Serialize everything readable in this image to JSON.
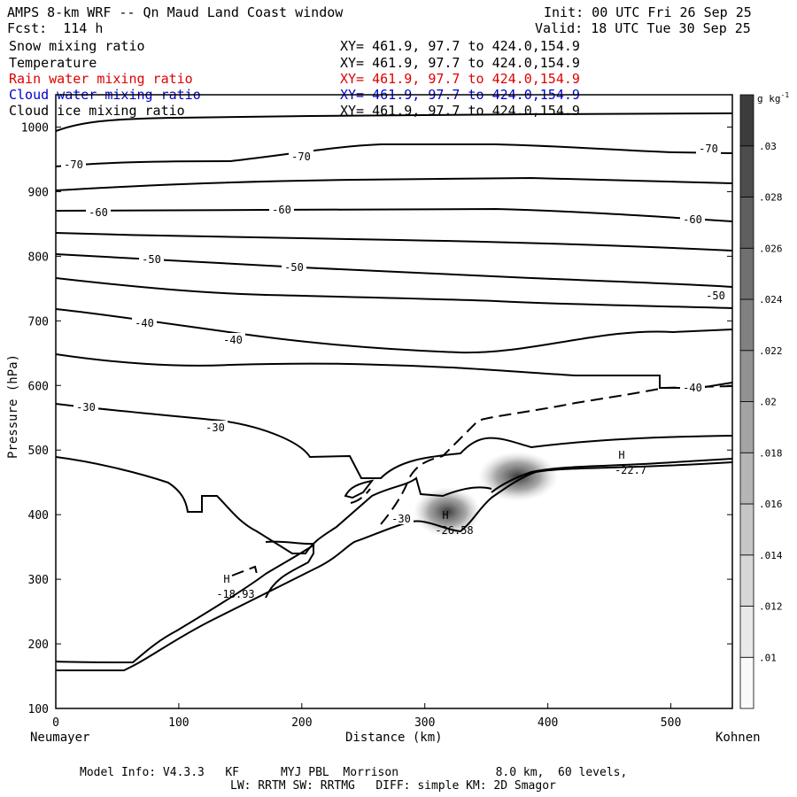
{
  "header": {
    "title": "AMPS 8-km WRF -- Qn Maud Land Coast window",
    "fcst": "Fcst:  114 h",
    "init": "Init: 00 UTC Fri 26 Sep 25",
    "valid": "Valid: 18 UTC Tue 30 Sep 25"
  },
  "fields": [
    {
      "name": "Snow mixing ratio",
      "xy": "XY= 461.9, 97.7 to 424.0,154.9",
      "color": "#000000"
    },
    {
      "name": "Temperature",
      "xy": "XY= 461.9, 97.7 to 424.0,154.9",
      "color": "#000000"
    },
    {
      "name": "Rain water mixing ratio",
      "xy": "XY= 461.9, 97.7 to 424.0,154.9",
      "color": "#e00000"
    },
    {
      "name": "Cloud water mixing ratio",
      "xy": "XY= 461.9, 97.7 to 424.0,154.9",
      "color": "#0000cc"
    },
    {
      "name": "Cloud ice mixing ratio",
      "xy": "XY= 461.9, 97.7 to 424.0,154.9",
      "color": "#000000"
    }
  ],
  "chart_data": {
    "type": "cross-section contour",
    "xlabel": "Distance (km)",
    "ylabel": "Pressure (hPa)",
    "xlim": [
      0,
      550
    ],
    "ylim": [
      1050,
      100
    ],
    "x_ticks": [
      "0",
      "100",
      "200",
      "300",
      "400",
      "500"
    ],
    "y_ticks": [
      "100",
      "200",
      "300",
      "400",
      "500",
      "600",
      "700",
      "800",
      "900",
      "1000"
    ],
    "left_label": "Neumayer",
    "right_label": "Kohnen",
    "contour_labels": [
      "-70",
      "-70",
      "-70",
      "-60",
      "-60",
      "-60",
      "-50",
      "-50",
      "-50",
      "-40",
      "-40",
      "-40",
      "-30",
      "-30",
      "-30"
    ],
    "extrema": [
      {
        "type": "H",
        "value": "-18.93"
      },
      {
        "type": "H",
        "value": "-26.58"
      },
      {
        "type": "H",
        "value": "-22.7"
      }
    ],
    "colorbar": {
      "unit": "g kg",
      "unit_exp": "-1",
      "levels": [
        ".01",
        ".012",
        ".014",
        ".016",
        ".018",
        ".02",
        ".022",
        ".024",
        ".026",
        ".028",
        ".03"
      ]
    }
  },
  "footer": {
    "line1": "Model Info: V4.3.3   KF      MYJ PBL  Morrison              8.0 km,  60 levels,",
    "line2": "LW: RRTM SW: RRTMG   DIFF: simple KM: 2D Smagor"
  }
}
